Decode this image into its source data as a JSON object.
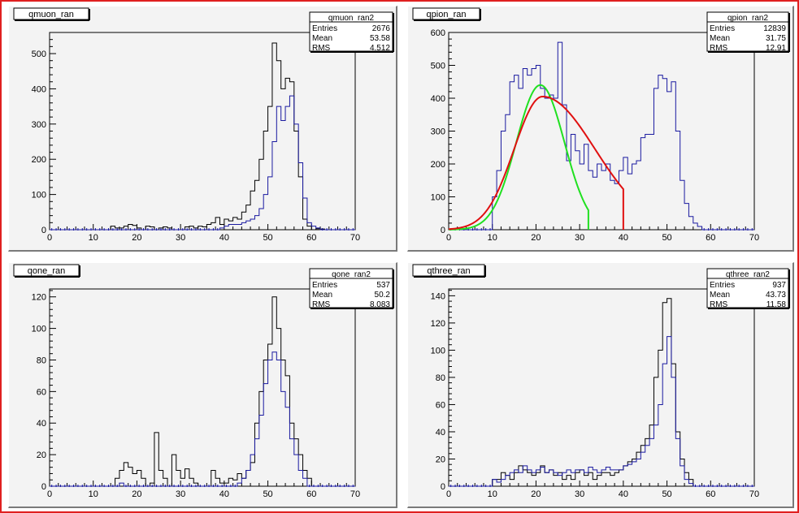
{
  "chart_data": [
    {
      "type": "histogram",
      "title": "qmuon_ran",
      "xlim": [
        0,
        70
      ],
      "ylim": [
        0,
        560
      ],
      "xticks": [
        0,
        10,
        20,
        30,
        40,
        50,
        60,
        70
      ],
      "yticks": [
        0,
        100,
        200,
        300,
        400,
        500
      ],
      "stats": {
        "name": "qmuon_ran2",
        "rows": [
          [
            "Entries",
            "2676"
          ],
          [
            "Mean",
            "53.58"
          ],
          [
            "RMS",
            "4.512"
          ]
        ]
      },
      "bin_start": 0,
      "bin_width": 1,
      "series": [
        {
          "color": "#000000",
          "values": [
            0,
            0,
            0,
            0,
            0,
            0,
            0,
            0,
            0,
            0,
            0,
            0,
            0,
            0,
            10,
            5,
            5,
            10,
            15,
            12,
            5,
            0,
            10,
            8,
            0,
            5,
            8,
            5,
            0,
            0,
            0,
            8,
            10,
            5,
            10,
            8,
            15,
            20,
            35,
            15,
            30,
            25,
            35,
            30,
            50,
            70,
            110,
            140,
            200,
            280,
            350,
            530,
            480,
            400,
            430,
            420,
            280,
            150,
            30,
            10,
            0,
            3,
            2,
            0,
            0,
            0,
            0,
            0,
            0,
            0
          ]
        },
        {
          "color": "#1a1aa0",
          "values": [
            0,
            0,
            0,
            0,
            0,
            0,
            0,
            0,
            0,
            0,
            0,
            0,
            0,
            0,
            0,
            0,
            0,
            0,
            0,
            0,
            0,
            0,
            0,
            0,
            0,
            0,
            0,
            0,
            0,
            0,
            0,
            0,
            0,
            0,
            0,
            0,
            0,
            0,
            0,
            5,
            10,
            15,
            15,
            15,
            20,
            25,
            30,
            40,
            60,
            100,
            150,
            250,
            350,
            310,
            350,
            380,
            300,
            190,
            90,
            20,
            10,
            5,
            0,
            0,
            0,
            0,
            0,
            0,
            0,
            0
          ]
        }
      ]
    },
    {
      "type": "histogram",
      "title": "qpion_ran",
      "xlim": [
        0,
        70
      ],
      "ylim": [
        0,
        600
      ],
      "xticks": [
        0,
        10,
        20,
        30,
        40,
        50,
        60,
        70
      ],
      "yticks": [
        0,
        100,
        200,
        300,
        400,
        500,
        600
      ],
      "stats": {
        "name": "qpion_ran2",
        "rows": [
          [
            "Entries",
            "12839"
          ],
          [
            "Mean",
            "31.75"
          ],
          [
            "RMS",
            "12.91"
          ]
        ]
      },
      "bin_start": 0,
      "bin_width": 1,
      "series": [
        {
          "color": "#1a1aa0",
          "values": [
            0,
            0,
            0,
            0,
            0,
            0,
            0,
            0,
            0,
            0,
            100,
            180,
            300,
            350,
            450,
            470,
            430,
            490,
            470,
            490,
            500,
            430,
            400,
            410,
            400,
            570,
            380,
            210,
            290,
            240,
            200,
            260,
            180,
            160,
            200,
            180,
            200,
            150,
            140,
            180,
            220,
            170,
            200,
            210,
            280,
            290,
            290,
            430,
            470,
            460,
            420,
            450,
            300,
            150,
            80,
            40,
            20,
            10,
            0,
            0,
            0,
            0,
            0,
            0,
            0,
            0,
            0,
            0,
            0,
            0
          ]
        }
      ],
      "fits": [
        {
          "color": "#20e020",
          "type": "gaussian",
          "amp": 440,
          "mu": 21,
          "sigma": 5.5,
          "xmin": 0,
          "xmax": 32
        },
        {
          "color": "#e01010",
          "type": "asym",
          "amp": 405,
          "mu": 21.5,
          "sigma_left": 6.5,
          "sigma_right": 12,
          "xmin": 0,
          "xmax": 40
        }
      ]
    },
    {
      "type": "histogram",
      "title": "qone_ran",
      "xlim": [
        0,
        70
      ],
      "ylim": [
        0,
        125
      ],
      "xticks": [
        0,
        10,
        20,
        30,
        40,
        50,
        60,
        70
      ],
      "yticks": [
        0,
        20,
        40,
        60,
        80,
        100,
        120
      ],
      "stats": {
        "name": "qone_ran2",
        "rows": [
          [
            "Entries",
            "537"
          ],
          [
            "Mean",
            "50.2"
          ],
          [
            "RMS",
            "8.083"
          ]
        ]
      },
      "bin_start": 0,
      "bin_width": 1,
      "series": [
        {
          "color": "#000000",
          "values": [
            0,
            0,
            0,
            0,
            0,
            0,
            0,
            0,
            0,
            0,
            0,
            0,
            0,
            0,
            0,
            5,
            10,
            15,
            12,
            8,
            10,
            5,
            0,
            2,
            34,
            10,
            5,
            0,
            20,
            10,
            5,
            11,
            5,
            2,
            0,
            0,
            0,
            10,
            5,
            2,
            2,
            5,
            4,
            8,
            5,
            10,
            15,
            40,
            60,
            80,
            90,
            120,
            100,
            80,
            70,
            40,
            30,
            20,
            10,
            5,
            0,
            0,
            0,
            0,
            0,
            0,
            0,
            0,
            0,
            0
          ]
        },
        {
          "color": "#1a1aa0",
          "values": [
            0,
            0,
            0,
            0,
            0,
            0,
            0,
            0,
            0,
            0,
            0,
            0,
            0,
            0,
            0,
            0,
            2,
            0,
            0,
            0,
            0,
            0,
            0,
            0,
            0,
            0,
            0,
            0,
            0,
            0,
            0,
            0,
            0,
            0,
            0,
            0,
            0,
            0,
            0,
            0,
            0,
            0,
            0,
            2,
            5,
            10,
            20,
            30,
            45,
            65,
            80,
            85,
            80,
            60,
            50,
            30,
            20,
            10,
            5,
            0,
            0,
            0,
            0,
            0,
            0,
            0,
            0,
            0,
            0,
            0
          ]
        }
      ]
    },
    {
      "type": "histogram",
      "title": "qthree_ran",
      "xlim": [
        0,
        70
      ],
      "ylim": [
        0,
        145
      ],
      "xticks": [
        0,
        10,
        20,
        30,
        40,
        50,
        60,
        70
      ],
      "yticks": [
        0,
        20,
        40,
        60,
        80,
        100,
        120,
        140
      ],
      "stats": {
        "name": "qthree_ran2",
        "rows": [
          [
            "Entries",
            "937"
          ],
          [
            "Mean",
            "43.73"
          ],
          [
            "RMS",
            "11.58"
          ]
        ]
      },
      "bin_start": 0,
      "bin_width": 1,
      "series": [
        {
          "color": "#000000",
          "values": [
            0,
            0,
            0,
            0,
            0,
            0,
            0,
            0,
            0,
            0,
            5,
            5,
            10,
            8,
            5,
            10,
            15,
            12,
            10,
            8,
            10,
            15,
            10,
            12,
            8,
            10,
            5,
            8,
            5,
            10,
            12,
            8,
            10,
            5,
            8,
            10,
            10,
            8,
            10,
            12,
            15,
            18,
            20,
            25,
            30,
            35,
            45,
            80,
            100,
            135,
            138,
            90,
            40,
            20,
            10,
            5,
            0,
            0,
            0,
            0,
            0,
            0,
            0,
            0,
            0,
            0,
            0,
            0,
            0,
            0
          ]
        },
        {
          "color": "#1a1aa0",
          "values": [
            0,
            0,
            0,
            0,
            0,
            0,
            0,
            0,
            0,
            0,
            5,
            3,
            5,
            8,
            10,
            12,
            10,
            15,
            12,
            10,
            12,
            14,
            10,
            12,
            10,
            8,
            10,
            12,
            10,
            12,
            12,
            10,
            14,
            12,
            10,
            12,
            14,
            12,
            12,
            12,
            15,
            16,
            18,
            20,
            25,
            30,
            35,
            45,
            60,
            90,
            110,
            80,
            35,
            15,
            5,
            2,
            0,
            0,
            0,
            0,
            0,
            0,
            0,
            0,
            0,
            0,
            0,
            0,
            0,
            0
          ]
        }
      ]
    }
  ]
}
